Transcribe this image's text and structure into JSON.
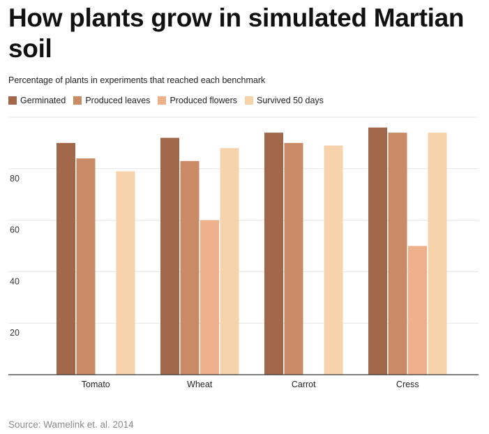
{
  "header": {
    "title": "How plants grow in simulated Martian soil",
    "subtitle": "Percentage of plants in experiments that reached each benchmark"
  },
  "footer": {
    "source": "Source: Wamelink et. al. 2014"
  },
  "chart_data": {
    "type": "bar",
    "categories": [
      "Tomato",
      "Wheat",
      "Carrot",
      "Cress"
    ],
    "series": [
      {
        "name": "Germinated",
        "color": "#a0674a",
        "values": [
          90,
          92,
          94,
          96
        ]
      },
      {
        "name": "Produced leaves",
        "color": "#c98b66",
        "values": [
          84,
          83,
          90,
          94
        ]
      },
      {
        "name": "Produced flowers",
        "color": "#efb18c",
        "values": [
          null,
          60,
          null,
          50
        ]
      },
      {
        "name": "Survived 50 days",
        "color": "#f7d3ac",
        "values": [
          79,
          88,
          89,
          94
        ]
      }
    ],
    "title": "How plants grow in simulated Martian soil",
    "subtitle": "Percentage of plants in experiments that reached each benchmark",
    "xlabel": "",
    "ylabel": "",
    "ylim": [
      0,
      100
    ],
    "yticks": [
      20,
      40,
      60,
      80
    ],
    "grid": true,
    "legend": "top-left"
  }
}
